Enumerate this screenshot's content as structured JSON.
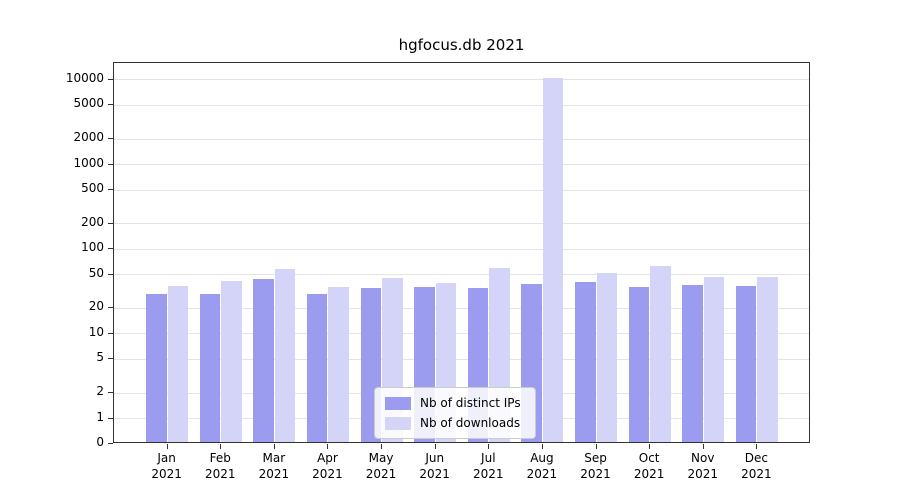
{
  "chart_data": {
    "type": "bar",
    "title": "hgfocus.db 2021",
    "categories": [
      "Jan",
      "Feb",
      "Mar",
      "Apr",
      "May",
      "Jun",
      "Jul",
      "Aug",
      "Sep",
      "Oct",
      "Nov",
      "Dec"
    ],
    "category_sublabel": "2021",
    "series": [
      {
        "name": "Nb of distinct IPs",
        "color": "#9b9bef",
        "values": [
          28,
          28,
          42,
          28,
          33,
          34,
          33,
          37,
          39,
          34,
          36,
          35
        ]
      },
      {
        "name": "Nb of downloads",
        "color": "#d4d4f8",
        "values": [
          35,
          40,
          55,
          34,
          43,
          38,
          57,
          10000,
          50,
          60,
          44,
          45
        ]
      }
    ],
    "yscale": "symlog",
    "yticks": [
      0,
      1,
      2,
      5,
      10,
      20,
      50,
      100,
      200,
      500,
      1000,
      2000,
      5000,
      10000
    ],
    "ylim": [
      0,
      10000
    ],
    "grid": true,
    "legend_position": "lower center"
  }
}
